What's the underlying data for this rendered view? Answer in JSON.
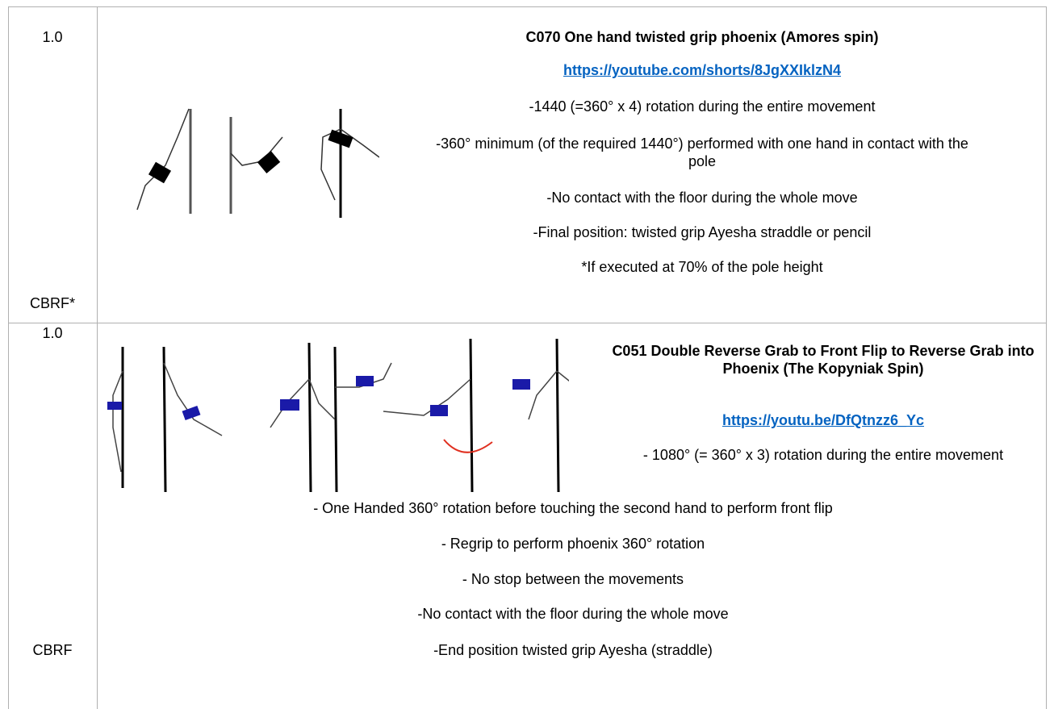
{
  "table": {
    "rows": [
      {
        "value": "1.0",
        "code": "CBRF*",
        "title": "C070 One hand twisted grip phoenix (Amores spin)",
        "link": "https://youtube.com/shorts/8JgXXIklzN4",
        "lines": [
          "-1440 (=360° x 4) rotation during the entire movement",
          "-360° minimum (of the required 1440°) performed with one hand in contact with the pole",
          "-No contact with the floor during the whole move",
          "-Final position: twisted grip Ayesha straddle or pencil",
          "*If executed at 70% of the pole height"
        ]
      },
      {
        "value": "1.0",
        "code": "CBRF",
        "title": "C051  Double Reverse Grab to Front Flip to Reverse Grab into Phoenix (The Kopyniak Spin)",
        "link": "https://youtu.be/DfQtnzz6_Yc",
        "lines": [
          "- 1080° (= 360° x 3) rotation during the entire movement",
          "- One Handed 360° rotation before touching the second hand to perform front flip",
          "- Regrip to perform phoenix 360° rotation",
          "- No stop between the movements",
          "-No contact with the floor during the whole move",
          "-End position twisted grip Ayesha (straddle)"
        ]
      }
    ]
  }
}
